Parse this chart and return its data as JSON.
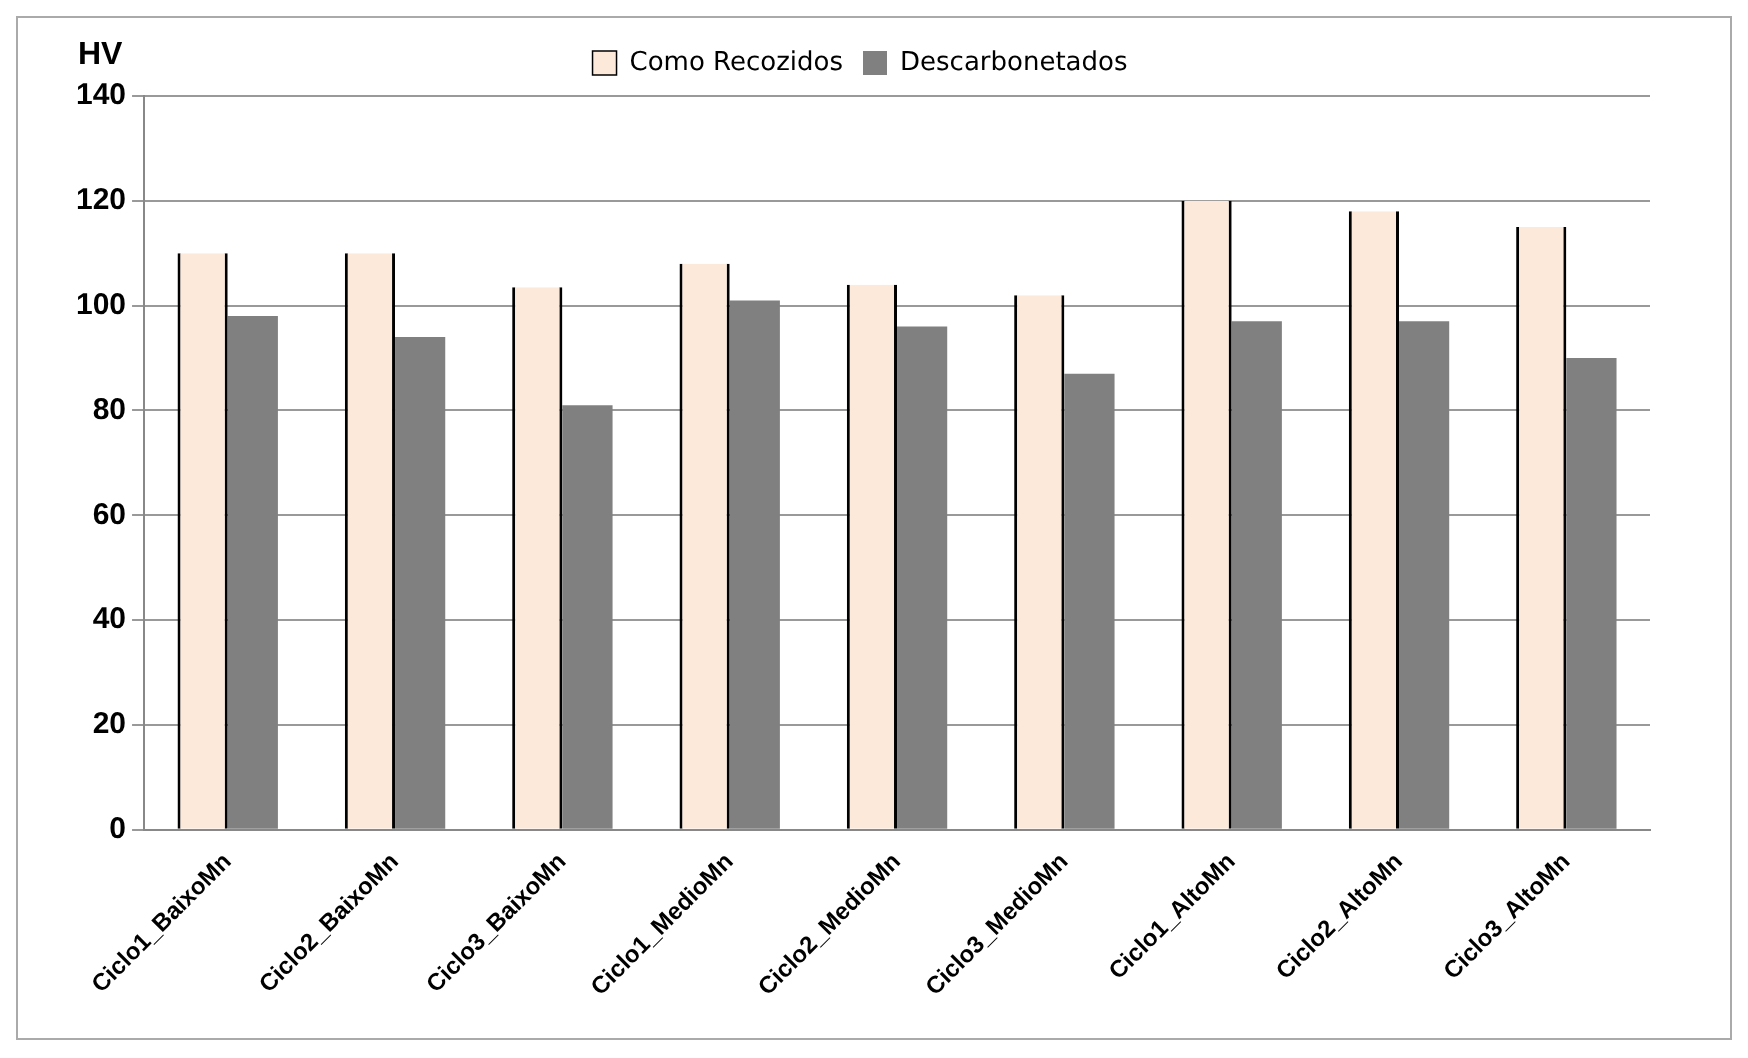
{
  "chart_data": {
    "type": "bar",
    "ylabel": "HV",
    "categories": [
      "Ciclo1_BaixoMn",
      "Ciclo2_BaixoMn",
      "Ciclo3_BaixoMn",
      "Ciclo1_MedioMn",
      "Ciclo2_MedioMn",
      "Ciclo3_MedioMn",
      "Ciclo1_AltoMn",
      "Ciclo2_AltoMn",
      "Ciclo3_AltoMn"
    ],
    "series": [
      {
        "name": "Como Recozidos",
        "color": "#fde9d9",
        "values": [
          110,
          110,
          103.5,
          108,
          104,
          102,
          120,
          118,
          115
        ]
      },
      {
        "name": "Descarbonetados",
        "color": "#808080",
        "values": [
          98,
          94,
          81,
          101,
          96,
          87,
          97,
          97,
          90
        ]
      }
    ],
    "ylim": [
      0,
      140
    ],
    "yticks": [
      0,
      20,
      40,
      60,
      80,
      100,
      120,
      140
    ],
    "grid": "y",
    "legend": "top"
  }
}
